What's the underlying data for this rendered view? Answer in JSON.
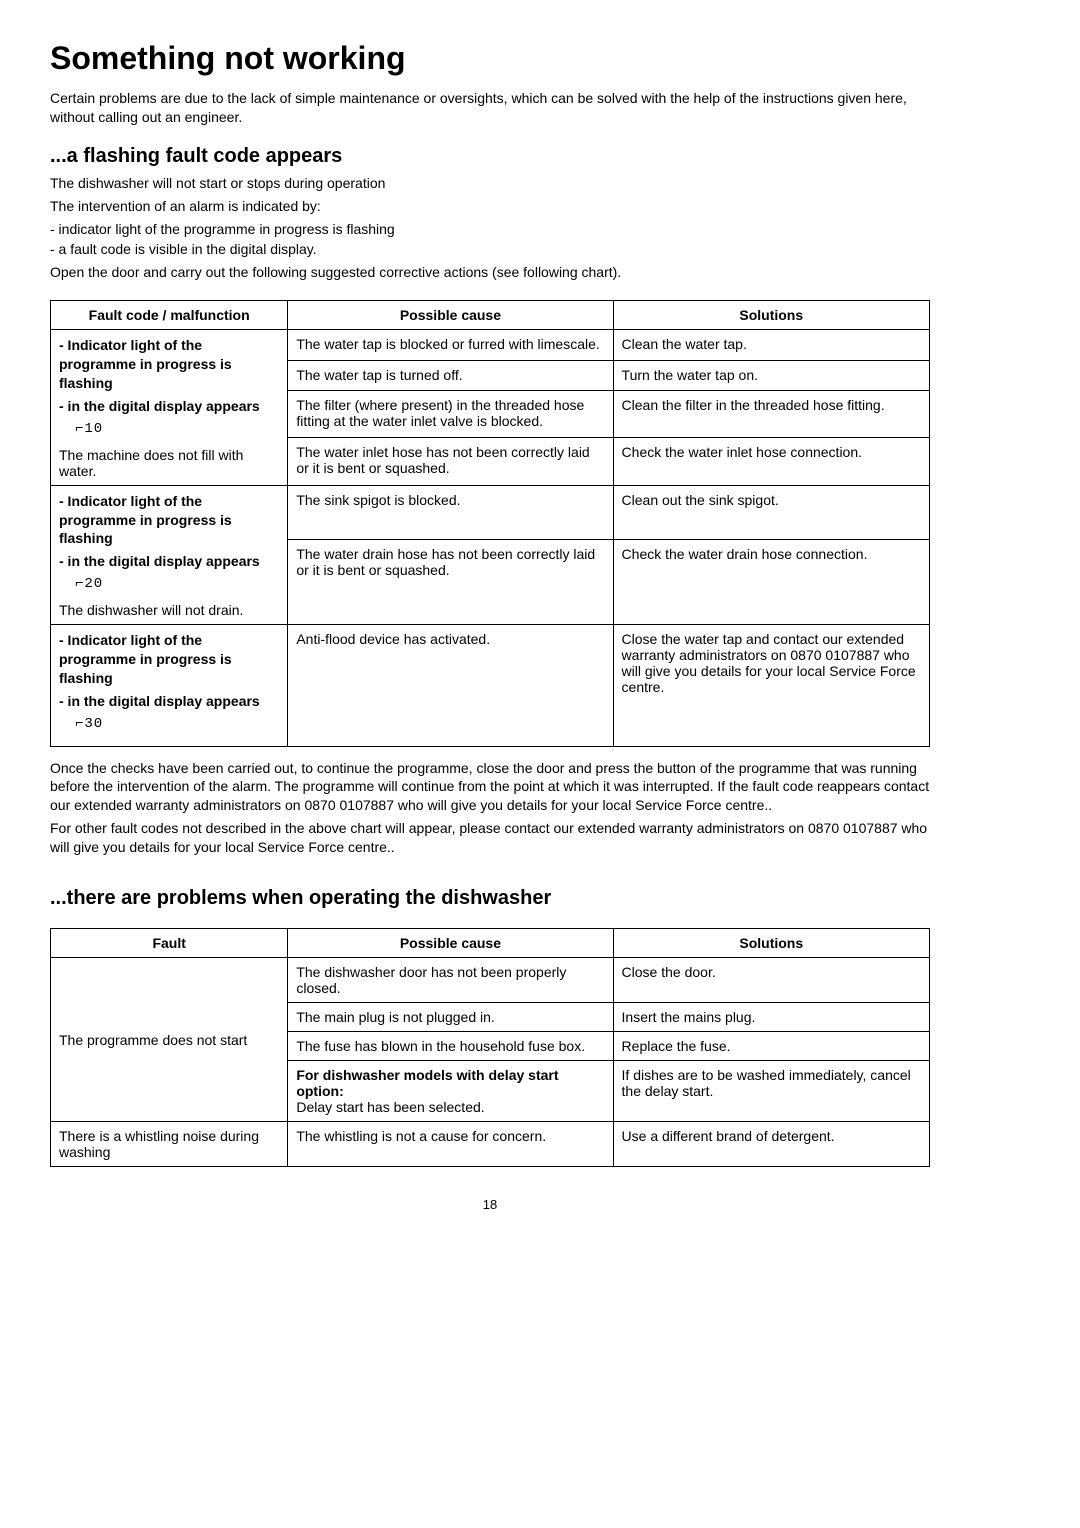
{
  "title": "Something not working",
  "intro": "Certain problems are due to the lack of simple maintenance or oversights, which can be solved with the help of the instructions given here, without calling out an engineer.",
  "section1": {
    "heading": "...a flashing fault code appears",
    "p1": "The dishwasher will not start or stops during operation",
    "p2": "The intervention of an alarm is indicated by:",
    "li1": "- indicator light of the programme in progress is flashing",
    "li2": "- a fault code is visible in the digital display.",
    "p3": "Open the door and carry out the following suggested corrective actions (see following chart).",
    "headers": {
      "c1": "Fault code / malfunction",
      "c2": "Possible cause",
      "c3": "Solutions"
    },
    "faults": [
      {
        "label_l1": "- Indicator light of the programme in progress is flashing",
        "label_l2": "- in the digital display appears",
        "glyph": "⌐10",
        "sub": "The machine does not fill with water.",
        "rows": [
          {
            "cause": "The water tap is blocked or furred with limescale.",
            "sol": "Clean the water tap."
          },
          {
            "cause": "The water tap is turned off.",
            "sol": "Turn the water tap on."
          },
          {
            "cause": "The filter (where present) in the threaded hose fitting at the water inlet valve is blocked.",
            "sol": "Clean the filter in the threaded hose fitting."
          },
          {
            "cause": "The water inlet hose has not been correctly laid or it is bent or squashed.",
            "sol": "Check the water inlet hose connection."
          }
        ]
      },
      {
        "label_l1": "- Indicator light of the programme in progress is flashing",
        "label_l2": "- in the digital display appears",
        "glyph": "⌐20",
        "sub": "The dishwasher will not drain.",
        "rows": [
          {
            "cause": "The sink spigot is blocked.",
            "sol": "Clean out the sink spigot."
          },
          {
            "cause": "The water drain hose has not been correctly laid or it is bent or squashed.",
            "sol": "Check the water drain hose connection."
          }
        ]
      },
      {
        "label_l1": "- Indicator light of the programme in progress is flashing",
        "label_l2": "- in the digital display appears",
        "glyph": "⌐30",
        "sub": "",
        "rows": [
          {
            "cause": "Anti-flood device has activated.",
            "sol": "Close the water tap and contact our extended warranty administrators on 0870 0107887 who will give you details for your local Service Force centre."
          }
        ]
      }
    ],
    "after1": "Once the checks have been carried out, to continue the programme, close the door and press the button of the programme that was running before the intervention of the alarm. The programme will continue from the point at which it was interrupted. If the fault code reappears contact our extended warranty administrators on 0870 0107887 who will give you details for your local Service Force centre..",
    "after2": "For other fault codes not described in the above chart will appear, please contact our extended warranty administrators on 0870 0107887 who will give you details for your local Service Force centre.."
  },
  "section2": {
    "heading": "...there are problems when operating the dishwasher",
    "headers": {
      "c1": "Fault",
      "c2": "Possible cause",
      "c3": "Solutions"
    },
    "faults": [
      {
        "label": "The programme does not start",
        "rows": [
          {
            "cause": "The dishwasher door has not been properly closed.",
            "sol": "Close the door."
          },
          {
            "cause": "The main plug is not plugged in.",
            "sol": "Insert the mains plug."
          },
          {
            "cause": "The fuse has blown in the household fuse box.",
            "sol": "Replace the fuse."
          }
        ],
        "special": {
          "cause_bold": "For dishwasher models with delay start option:",
          "cause_rest": "Delay start has been selected.",
          "sol": "If dishes are to be washed immediately, cancel the delay start."
        }
      },
      {
        "label": "There is a whistling noise during washing",
        "rows": [
          {
            "cause": "The whistling is not a cause for concern.",
            "sol": "Use a different brand of detergent."
          }
        ]
      }
    ]
  },
  "page_number": "18"
}
